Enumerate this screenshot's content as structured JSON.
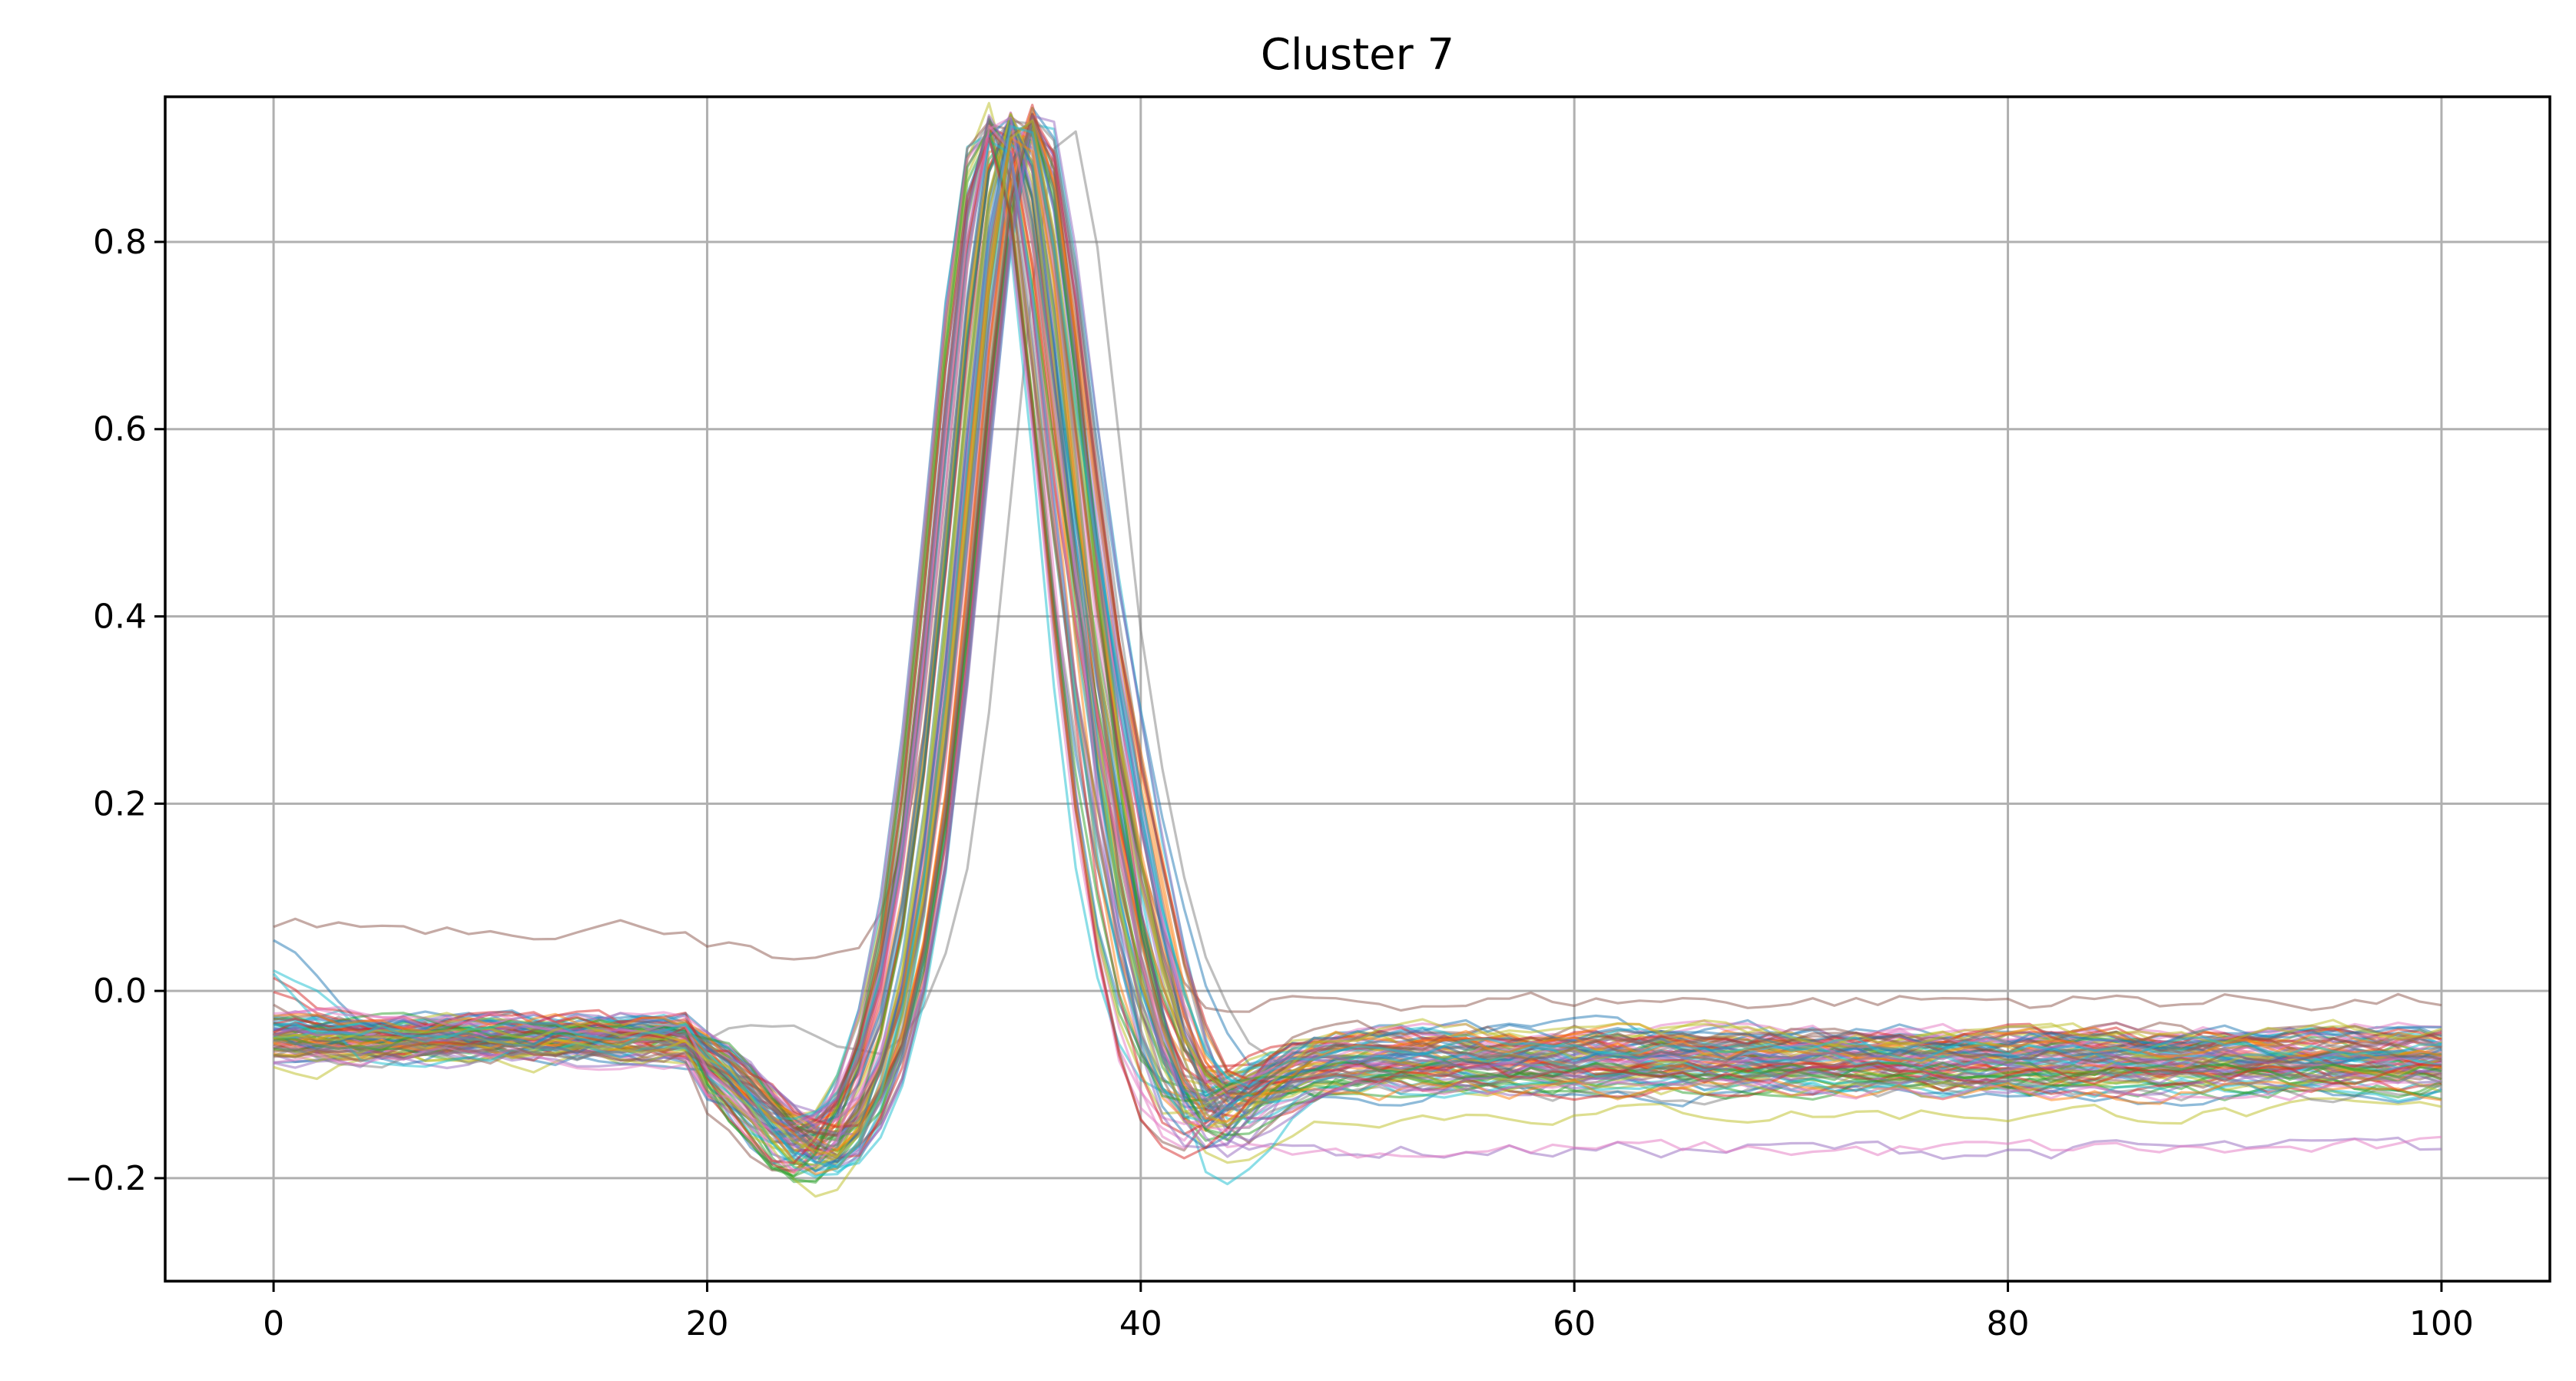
{
  "chart_data": {
    "type": "line",
    "title": "Cluster 7",
    "xlabel": "",
    "ylabel": "",
    "xlim": [
      -5,
      105
    ],
    "ylim": [
      -0.31,
      0.955
    ],
    "xticks": [
      0,
      20,
      40,
      60,
      80,
      100
    ],
    "xtick_labels": [
      "0",
      "20",
      "40",
      "60",
      "80",
      "100"
    ],
    "yticks": [
      -0.2,
      0.0,
      0.2,
      0.4,
      0.6,
      0.8
    ],
    "ytick_labels": [
      "−0.2",
      "0.0",
      "0.2",
      "0.4",
      "0.6",
      "0.8"
    ],
    "grid": true,
    "legend": "none",
    "x_range": [
      0,
      100
    ],
    "n_points": 101,
    "colors": [
      "#1f77b4",
      "#ff7f0e",
      "#2ca02c",
      "#d62728",
      "#9467bd",
      "#8c564b",
      "#e377c2",
      "#7f7f7f",
      "#bcbd22",
      "#17becf"
    ],
    "representative_series": [
      {
        "peak_x": 33.0,
        "pre": -0.05,
        "post": -0.07,
        "dip": -0.18,
        "overshoot": -0.15,
        "color": "#1f77b4"
      },
      {
        "peak_x": 33.5,
        "pre": -0.04,
        "post": -0.06,
        "dip": -0.16,
        "overshoot": -0.12,
        "color": "#ff7f0e"
      },
      {
        "peak_x": 34.0,
        "pre": -0.06,
        "post": -0.09,
        "dip": -0.2,
        "overshoot": -0.18,
        "color": "#2ca02c"
      },
      {
        "peak_x": 34.2,
        "pre": -0.05,
        "post": -0.08,
        "dip": -0.17,
        "overshoot": -0.14,
        "color": "#d62728"
      },
      {
        "peak_x": 34.8,
        "pre": -0.07,
        "post": -0.17,
        "dip": -0.19,
        "overshoot": -0.17,
        "color": "#9467bd"
      },
      {
        "peak_x": 34.0,
        "pre": 0.07,
        "post": -0.01,
        "dip": 0.02,
        "overshoot": -0.05,
        "color": "#8c564b"
      },
      {
        "peak_x": 33.8,
        "pre": -0.05,
        "post": -0.17,
        "dip": -0.18,
        "overshoot": -0.16,
        "color": "#e377c2"
      },
      {
        "peak_x": 36.5,
        "pre": -0.04,
        "post": -0.08,
        "dip": -0.06,
        "overshoot": -0.1,
        "color": "#7f7f7f"
      },
      {
        "peak_x": 34.5,
        "pre": -0.08,
        "post": -0.13,
        "dip": -0.21,
        "overshoot": -0.22,
        "color": "#bcbd22"
      },
      {
        "peak_x": 35.0,
        "pre": -0.04,
        "post": -0.1,
        "dip": -0.19,
        "overshoot": -0.25,
        "color": "#17becf"
      }
    ]
  }
}
